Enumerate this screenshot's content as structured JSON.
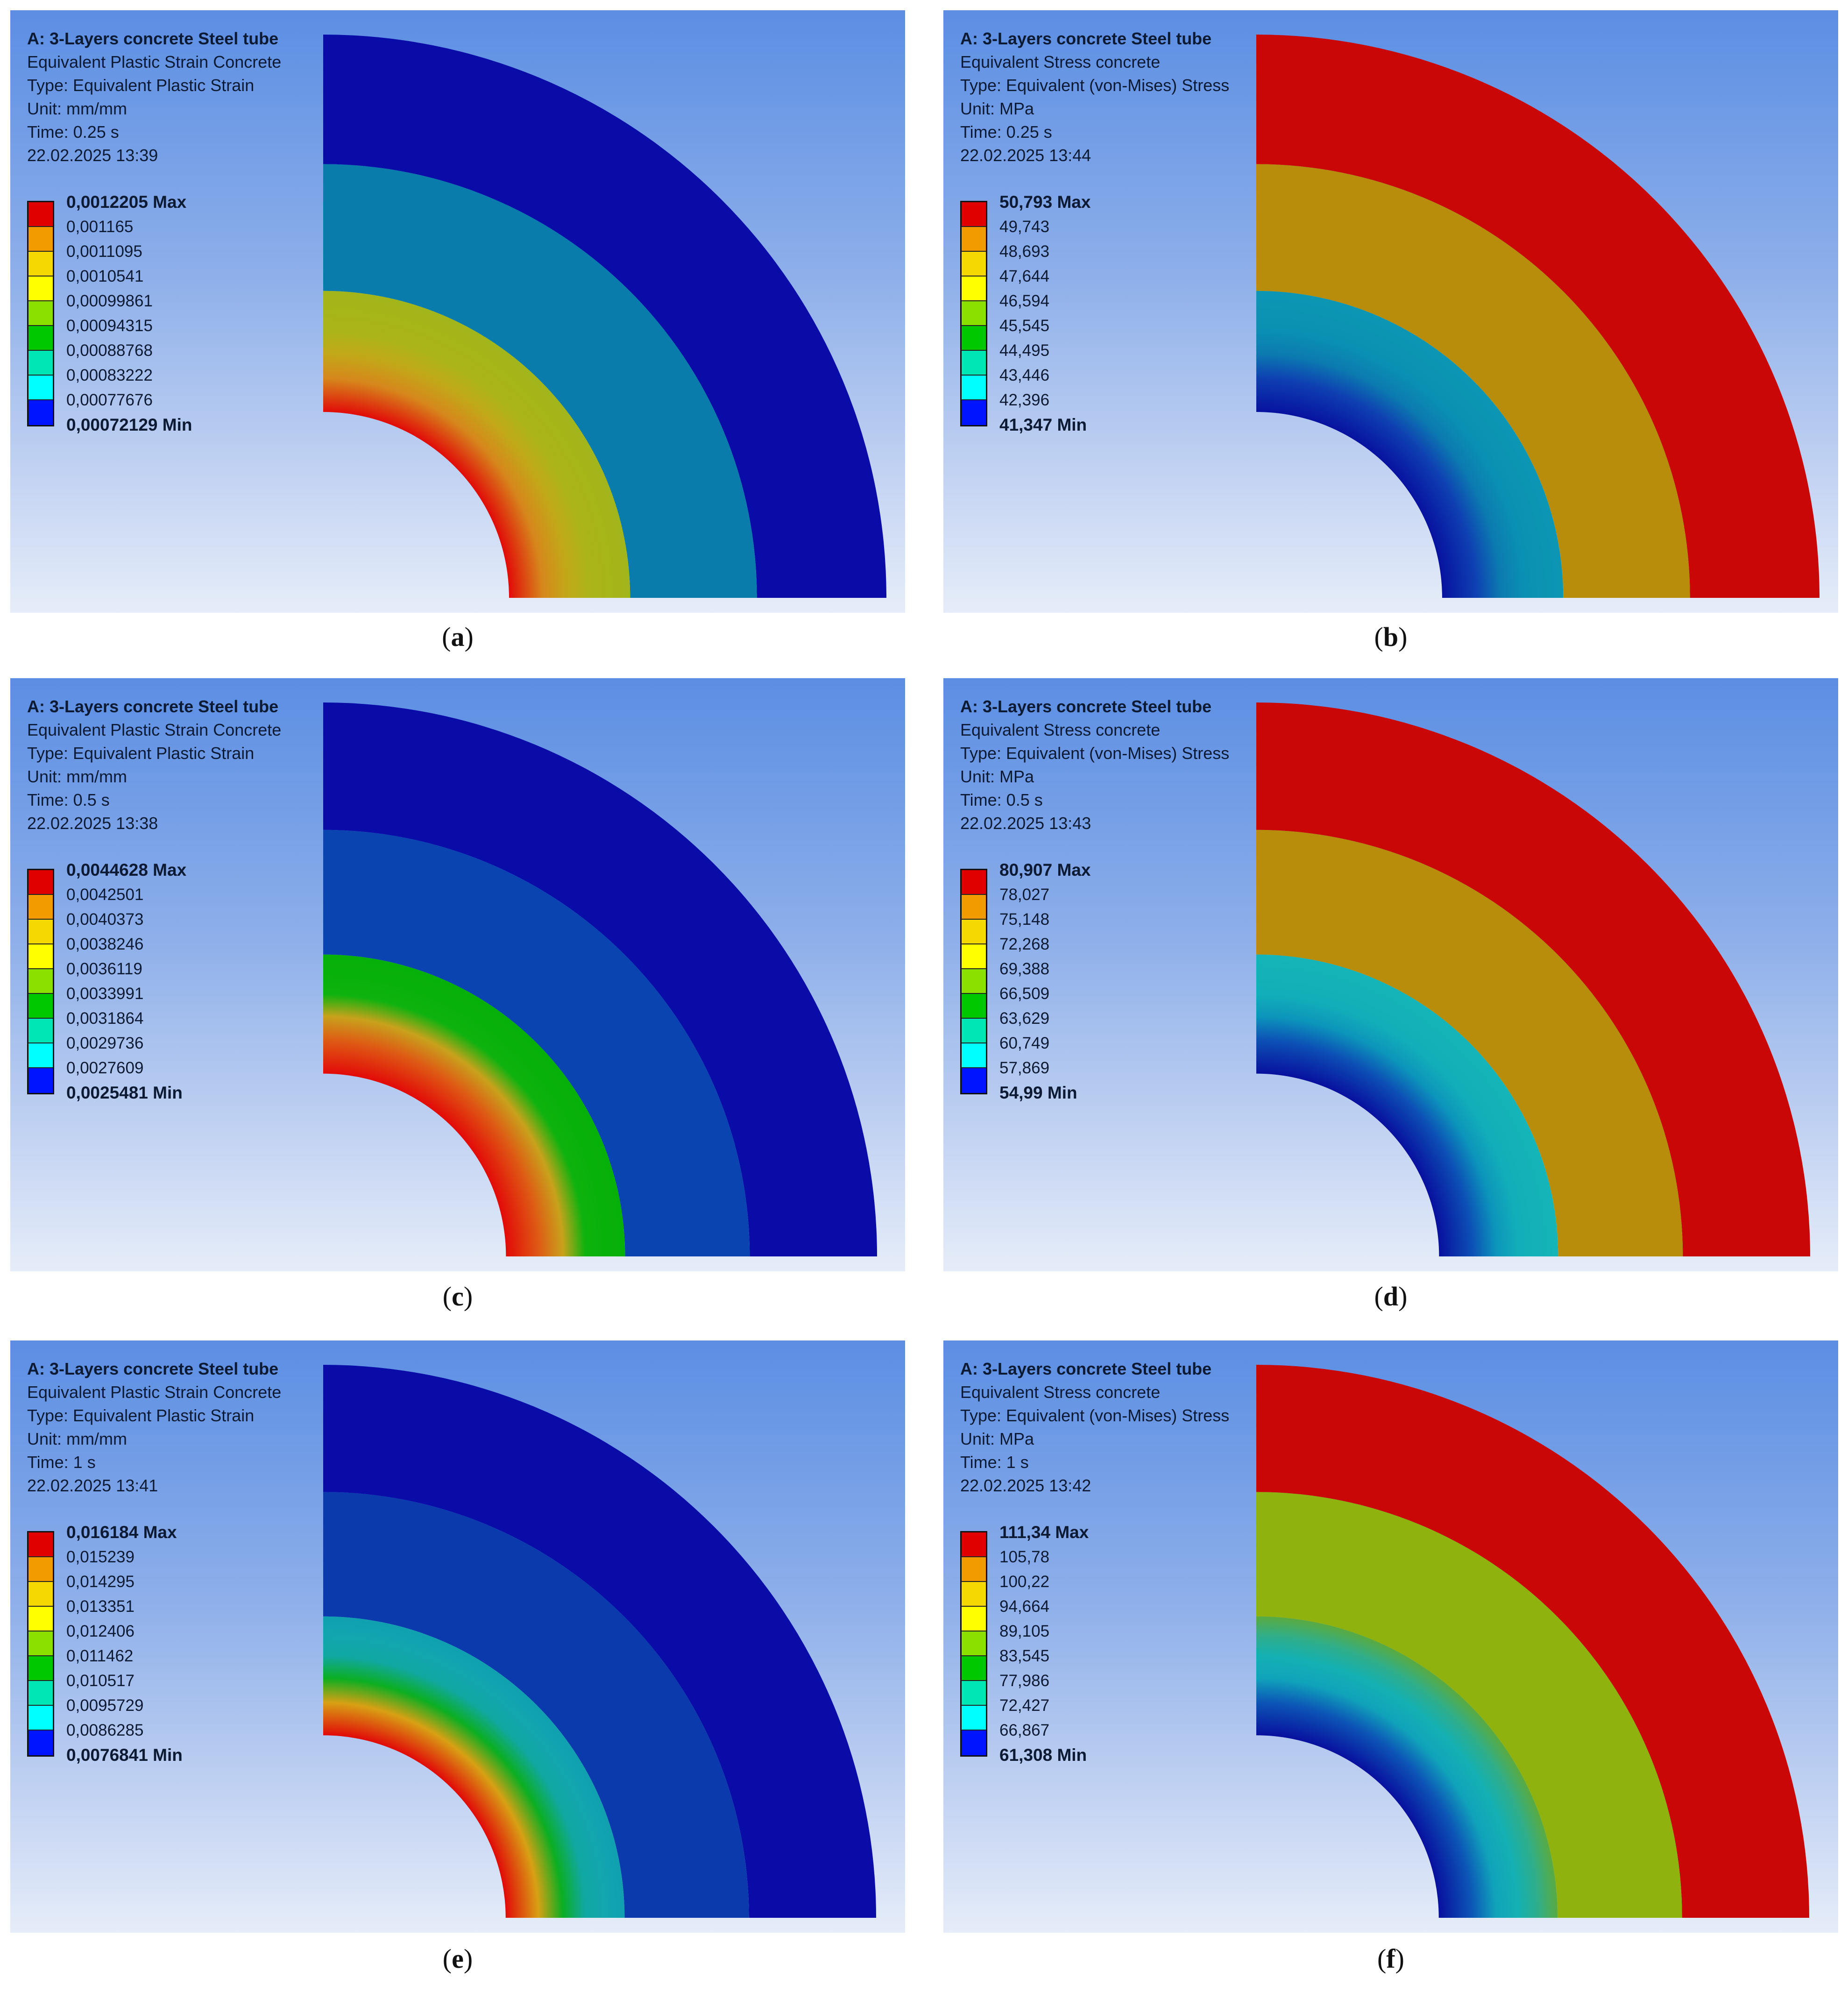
{
  "panels": [
    {
      "id": "a",
      "caption": "a",
      "info": {
        "title": "A: 3-Layers concrete Steel tube",
        "result": "Equivalent Plastic Strain Concrete",
        "type": "Type: Equivalent Plastic Strain",
        "unit": "Unit: mm/mm",
        "time": "Time: 0.25 s",
        "date": "22.02.2025 13:39"
      },
      "legend": [
        "0,0012205 Max",
        "0,001165",
        "0,0011095",
        "0,0010541",
        "0,00099861",
        "0,00094315",
        "0,00088768",
        "0,00083222",
        "0,00077676",
        "0,00072129 Min"
      ],
      "colors": {
        "outer": "#0a0ca8",
        "middle": "#0a7cab",
        "inner": [
          "#e10b08",
          "#d6871c",
          "#c2a818",
          "#aab416",
          "#a6b518",
          "#a2b51a"
        ]
      }
    },
    {
      "id": "b",
      "caption": "b",
      "info": {
        "title": "A: 3-Layers concrete Steel tube",
        "result": "Equivalent Stress concrete",
        "type": "Type: Equivalent (von-Mises) Stress",
        "unit": "Unit: MPa",
        "time": "Time: 0.25 s",
        "date": "22.02.2025 13:44"
      },
      "legend": [
        "50,793 Max",
        "49,743",
        "48,693",
        "47,644",
        "46,594",
        "45,545",
        "44,495",
        "43,446",
        "42,396",
        "41,347 Min"
      ],
      "colors": {
        "outer": "#c90707",
        "middle": "#b88d0b",
        "inner": [
          "#07129f",
          "#0e3fb2",
          "#0c7ab0",
          "#0a8fb2",
          "#0c93b3",
          "#0c96b4"
        ]
      }
    },
    {
      "id": "c",
      "caption": "c",
      "info": {
        "title": "A: 3-Layers concrete Steel tube",
        "result": "Equivalent Plastic Strain Concrete",
        "type": "Type: Equivalent Plastic Strain",
        "unit": "Unit: mm/mm",
        "time": "Time: 0.5 s",
        "date": "22.02.2025 13:38"
      },
      "legend": [
        "0,0044628 Max",
        "0,0042501",
        "0,0040373",
        "0,0038246",
        "0,0036119",
        "0,0033991",
        "0,0031864",
        "0,0029736",
        "0,0027609",
        "0,0025481 Min"
      ],
      "colors": {
        "outer": "#0a0ca8",
        "middle": "#0a44b0",
        "inner": [
          "#e20a08",
          "#de5a14",
          "#c8a21c",
          "#0fb20e",
          "#08b00a",
          "#07b008"
        ]
      }
    },
    {
      "id": "d",
      "caption": "d",
      "info": {
        "title": "A: 3-Layers concrete Steel tube",
        "result": "Equivalent Stress concrete",
        "type": "Type: Equivalent (von-Mises) Stress",
        "unit": "Unit: MPa",
        "time": "Time: 0.5 s",
        "date": "22.02.2025 13:43"
      },
      "legend": [
        "80,907 Max",
        "78,027",
        "75,148",
        "72,268",
        "69,388",
        "66,509",
        "63,629",
        "60,749",
        "57,869",
        "54,99 Min"
      ],
      "colors": {
        "outer": "#c90707",
        "middle": "#b88d0b",
        "inner": [
          "#08109e",
          "#0c4fb5",
          "#0c95bb",
          "#12aeb9",
          "#14b2b8",
          "#14b4b8"
        ]
      }
    },
    {
      "id": "e",
      "caption": "e",
      "info": {
        "title": "A: 3-Layers concrete Steel tube",
        "result": "Equivalent Plastic Strain Concrete",
        "type": "Type: Equivalent Plastic Strain",
        "unit": "Unit: mm/mm",
        "time": "Time: 1 s",
        "date": "22.02.2025 13:41"
      },
      "legend": [
        "0,016184 Max",
        "0,015239",
        "0,014295",
        "0,013351",
        "0,012406",
        "0,011462",
        "0,010517",
        "0,0095729",
        "0,0086285",
        "0,0076841 Min"
      ],
      "colors": {
        "outer": "#0a0ca8",
        "middle": "#0a3aab",
        "inner": [
          "#e10a08",
          "#d8a014",
          "#0cae22",
          "#10a8a0",
          "#12a6b0",
          "#10a0b0"
        ]
      }
    },
    {
      "id": "f",
      "caption": "f",
      "info": {
        "title": "A: 3-Layers concrete Steel tube",
        "result": "Equivalent Stress concrete",
        "type": "Type: Equivalent (von-Mises) Stress",
        "unit": "Unit: MPa",
        "time": "Time: 1 s",
        "date": "22.02.2025 13:42"
      },
      "legend": [
        "111,34 Max",
        "105,78",
        "100,22",
        "94,664",
        "89,105",
        "83,545",
        "77,986",
        "72,427",
        "66,867",
        "61,308 Min"
      ],
      "colors": {
        "outer": "#c90707",
        "middle": "#8fb20f",
        "inner": [
          "#08109e",
          "#0c55b6",
          "#10a3ba",
          "#14b0b4",
          "#2fae8a",
          "#5aaa40"
        ]
      }
    }
  ],
  "legend_colors": [
    "#e10000",
    "#f29b00",
    "#f5d800",
    "#ffff00",
    "#8ce000",
    "#00c800",
    "#00e6b4",
    "#00ffff",
    "#00aaff",
    "#0014ff"
  ]
}
